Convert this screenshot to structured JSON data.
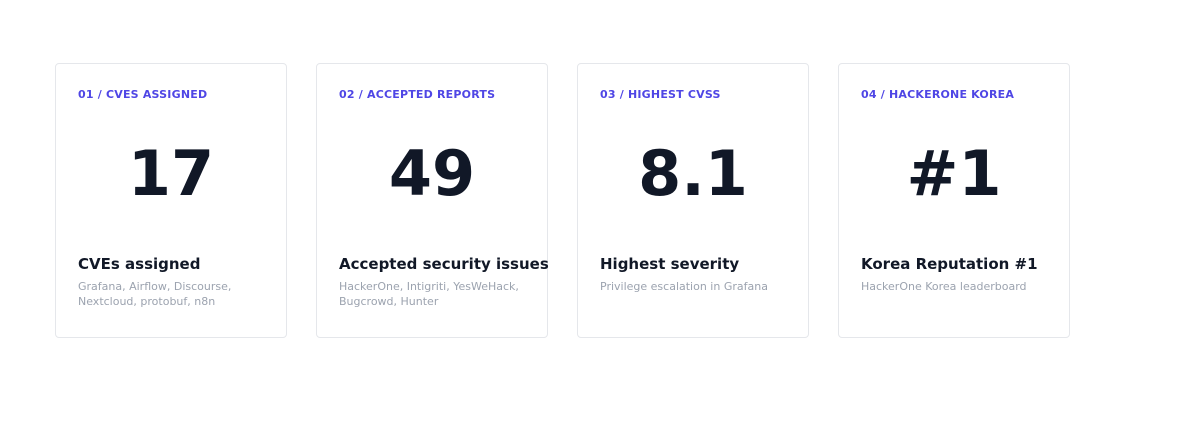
{
  "stats": [
    {
      "label": "01 / CVES ASSIGNED",
      "value": "17",
      "title": "CVEs assigned",
      "description": "Grafana, Airflow, Discourse, Nextcloud, protobuf, n8n"
    },
    {
      "label": "02 / ACCEPTED REPORTS",
      "value": "49",
      "title": "Accepted security issues",
      "description": "HackerOne, Intigriti, YesWeHack, Bugcrowd, Hunter"
    },
    {
      "label": "03 / HIGHEST CVSS",
      "value": "8.1",
      "title": "Highest severity",
      "description": "Privilege escalation in Grafana"
    },
    {
      "label": "04 / HACKERONE KOREA",
      "value": "#1",
      "title": "Korea Reputation #1",
      "description": "HackerOne Korea leaderboard"
    }
  ],
  "colors": {
    "accent": "#4f46e5",
    "value_text": "#111827",
    "muted_text": "#9ca3af",
    "card_border": "#e5e7eb"
  }
}
